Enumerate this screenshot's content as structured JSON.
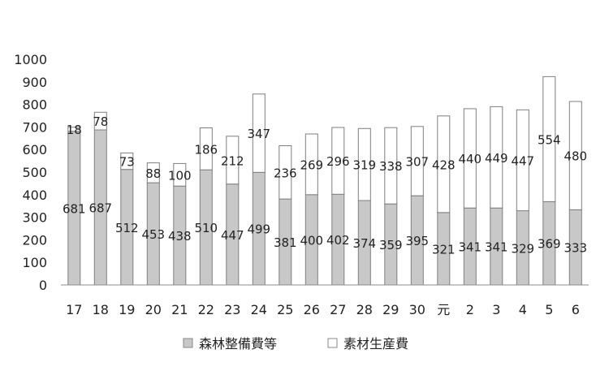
{
  "chart_data": {
    "type": "bar",
    "stacked": true,
    "categories": [
      "17",
      "18",
      "19",
      "20",
      "21",
      "22",
      "23",
      "24",
      "25",
      "26",
      "27",
      "28",
      "29",
      "30",
      "元",
      "2",
      "3",
      "4",
      "5",
      "6"
    ],
    "series": [
      {
        "name": "森林整備費等",
        "color": "#c8c8c8",
        "values": [
          681,
          687,
          512,
          453,
          438,
          510,
          447,
          499,
          381,
          400,
          402,
          374,
          359,
          395,
          321,
          341,
          341,
          329,
          369,
          333
        ]
      },
      {
        "name": "素材生産費",
        "color": "#ffffff",
        "values": [
          18,
          78,
          73,
          88,
          100,
          186,
          212,
          347,
          236,
          269,
          296,
          319,
          338,
          307,
          428,
          440,
          449,
          447,
          554,
          480
        ]
      }
    ],
    "ylim": [
      0,
      1000
    ],
    "yticks": [
      0,
      100,
      200,
      300,
      400,
      500,
      600,
      700,
      800,
      900,
      1000
    ],
    "title": "",
    "xlabel": "",
    "ylabel": "",
    "grid": false,
    "legend_position": "bottom"
  }
}
